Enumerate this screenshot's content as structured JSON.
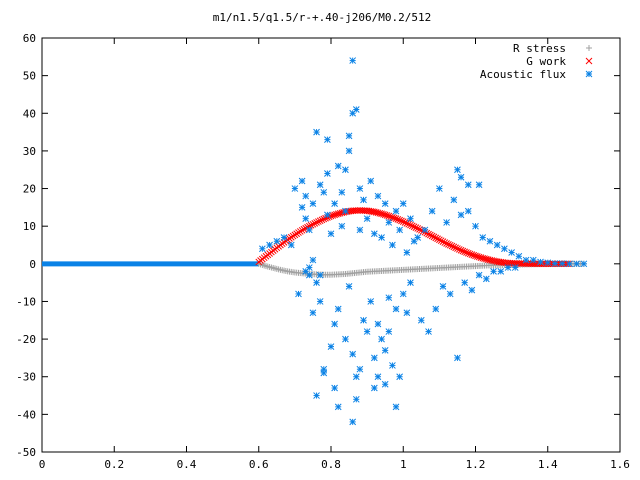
{
  "chart_data": {
    "type": "scatter",
    "title": "m1/n1.5/q1.5/r-+.40-j206/M0.2/512",
    "xlabel": "",
    "ylabel": "",
    "xlim": [
      0,
      1.6
    ],
    "ylim": [
      -50,
      60
    ],
    "x_ticks": [
      0,
      0.2,
      0.4,
      0.6,
      0.8,
      1,
      1.2,
      1.4,
      1.6
    ],
    "y_ticks": [
      -50,
      -40,
      -30,
      -20,
      -10,
      0,
      10,
      20,
      30,
      40,
      50,
      60
    ],
    "x_tick_labels": [
      "0",
      "0.2",
      "0.4",
      "0.6",
      "0.8",
      "1",
      "1.2",
      "1.4",
      "1.6"
    ],
    "y_tick_labels": [
      "-50",
      "-40",
      "-30",
      "-20",
      "-10",
      "0",
      "10",
      "20",
      "30",
      "40",
      "50",
      "60"
    ],
    "grid": false,
    "legend_position": "top-right",
    "series": [
      {
        "name": "R stress",
        "marker": "plus",
        "color": "#a0a0a0",
        "x": [
          0.6,
          0.62,
          0.64,
          0.66,
          0.68,
          0.7,
          0.72,
          0.74,
          0.76,
          0.78,
          0.8,
          0.82,
          0.84,
          0.86,
          0.88,
          0.9,
          0.92,
          0.94,
          0.96,
          0.98,
          1.0,
          1.02,
          1.04,
          1.06,
          1.08,
          1.1,
          1.12,
          1.14,
          1.16,
          1.18,
          1.2,
          1.22,
          1.24,
          1.26,
          1.28,
          1.3,
          1.32,
          1.34,
          1.36,
          1.38,
          1.4,
          1.42,
          1.44,
          1.46,
          1.48,
          1.5
        ],
        "y": [
          0,
          -0.6,
          -1.1,
          -1.6,
          -2.0,
          -2.3,
          -2.5,
          -2.7,
          -2.8,
          -2.9,
          -2.9,
          -2.8,
          -2.7,
          -2.5,
          -2.3,
          -2.1,
          -2.0,
          -1.9,
          -1.8,
          -1.7,
          -1.6,
          -1.5,
          -1.4,
          -1.3,
          -1.2,
          -1.1,
          -1.0,
          -0.9,
          -0.8,
          -0.7,
          -0.6,
          -0.5,
          -0.4,
          -0.35,
          -0.3,
          -0.25,
          -0.2,
          -0.15,
          -0.1,
          -0.08,
          -0.06,
          -0.04,
          -0.03,
          -0.02,
          -0.01,
          0
        ]
      },
      {
        "name": "G work",
        "marker": "cross",
        "color": "#ff0000",
        "x": [
          0.6,
          0.62,
          0.64,
          0.66,
          0.68,
          0.7,
          0.72,
          0.74,
          0.76,
          0.78,
          0.8,
          0.82,
          0.84,
          0.86,
          0.88,
          0.9,
          0.92,
          0.94,
          0.96,
          0.98,
          1.0,
          1.02,
          1.04,
          1.06,
          1.08,
          1.1,
          1.12,
          1.14,
          1.16,
          1.18,
          1.2,
          1.22,
          1.24,
          1.26,
          1.28,
          1.3,
          1.32,
          1.34,
          1.36,
          1.38,
          1.4,
          1.42,
          1.44,
          1.46
        ],
        "y": [
          0.5,
          2.0,
          3.5,
          5.0,
          6.4,
          7.7,
          8.9,
          10.0,
          11.0,
          11.9,
          12.7,
          13.3,
          13.8,
          14.1,
          14.2,
          14.1,
          13.8,
          13.3,
          12.7,
          12.0,
          11.2,
          10.3,
          9.4,
          8.4,
          7.4,
          6.4,
          5.4,
          4.5,
          3.6,
          2.8,
          2.1,
          1.5,
          1.0,
          0.6,
          0.3,
          0.15,
          0.1,
          0.05,
          0.02,
          0.0,
          0.0,
          0.0,
          0.0,
          0.0
        ]
      },
      {
        "name": "Acoustic flux",
        "marker": "star",
        "color": "#0a82e6",
        "x": [
          0.61,
          0.63,
          0.65,
          0.67,
          0.69,
          0.7,
          0.71,
          0.72,
          0.72,
          0.73,
          0.73,
          0.74,
          0.74,
          0.75,
          0.75,
          0.76,
          0.76,
          0.77,
          0.77,
          0.78,
          0.78,
          0.79,
          0.79,
          0.8,
          0.8,
          0.81,
          0.81,
          0.82,
          0.82,
          0.83,
          0.83,
          0.84,
          0.84,
          0.85,
          0.85,
          0.86,
          0.86,
          0.87,
          0.87,
          0.88,
          0.88,
          0.89,
          0.89,
          0.9,
          0.9,
          0.91,
          0.91,
          0.92,
          0.92,
          0.93,
          0.93,
          0.94,
          0.94,
          0.95,
          0.95,
          0.96,
          0.96,
          0.97,
          0.97,
          0.98,
          0.98,
          0.99,
          0.99,
          1.0,
          1.0,
          1.01,
          1.01,
          1.02,
          1.02,
          1.03,
          1.04,
          1.05,
          1.06,
          1.07,
          1.08,
          1.09,
          1.1,
          1.11,
          1.12,
          1.13,
          1.14,
          1.15,
          1.16,
          1.17,
          1.18,
          1.19,
          1.2,
          1.21,
          1.22,
          1.23,
          1.24,
          1.25,
          1.26,
          1.27,
          1.28,
          1.29,
          1.3,
          1.31,
          1.32,
          1.34,
          1.36,
          1.38,
          1.4,
          1.42,
          1.44,
          1.46,
          1.48,
          1.5,
          0.76,
          0.86,
          0.87,
          0.85,
          0.78,
          0.82,
          0.92,
          0.93,
          0.96,
          0.84,
          0.81,
          0.95,
          0.98,
          0.79,
          0.88,
          1.15,
          1.16,
          1.18,
          1.21,
          0.73,
          0.74,
          0.77,
          0.75,
          0.86
        ],
        "y": [
          4,
          5,
          6,
          7,
          5,
          20,
          -8,
          22,
          15,
          18,
          12,
          -3,
          9,
          16,
          -13,
          35,
          -5,
          21,
          -10,
          19,
          -28,
          24,
          13,
          8,
          -22,
          16,
          -16,
          26,
          -12,
          19,
          10,
          14,
          -20,
          34,
          -6,
          54,
          -24,
          41,
          -30,
          20,
          9,
          17,
          -15,
          12,
          -18,
          22,
          -10,
          8,
          -25,
          18,
          -16,
          7,
          -20,
          16,
          -23,
          11,
          -18,
          5,
          -27,
          14,
          -12,
          9,
          -30,
          16,
          -8,
          3,
          -13,
          12,
          -5,
          6,
          7,
          -15,
          9,
          -18,
          14,
          -12,
          20,
          -6,
          11,
          -8,
          17,
          -25,
          13,
          -5,
          14,
          -7,
          10,
          -3,
          7,
          -4,
          6,
          -2,
          5,
          -2,
          4,
          -1,
          3,
          -1,
          2,
          1,
          1,
          0.5,
          0.3,
          0.1,
          0.1,
          0,
          0,
          0,
          -35,
          -42,
          -36,
          30,
          -29,
          -38,
          -33,
          -30,
          -9,
          25,
          -33,
          -32,
          -38,
          33,
          -28,
          25,
          23,
          21,
          21,
          -2,
          -1,
          -3,
          1,
          40
        ]
      }
    ]
  }
}
